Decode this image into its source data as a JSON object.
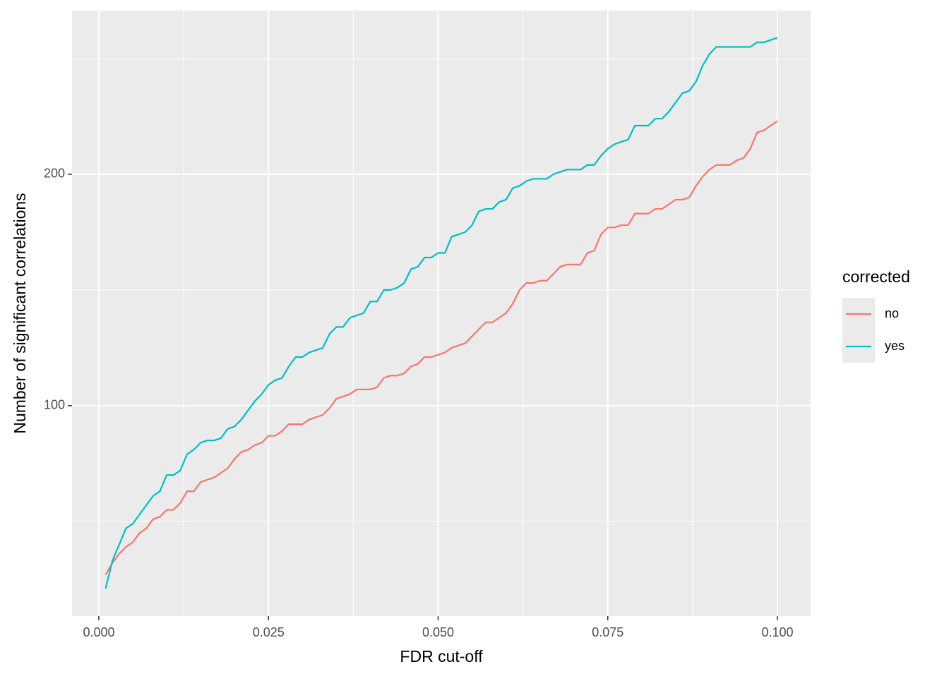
{
  "chart_data": {
    "type": "line",
    "x_label": "FDR cut-off",
    "y_label": "Number of significant correlations",
    "legend_title": "corrected",
    "legend_position": "right",
    "grid": true,
    "x": [
      0.001,
      0.002,
      0.003,
      0.004,
      0.005,
      0.006,
      0.007,
      0.008,
      0.009,
      0.01,
      0.011,
      0.012,
      0.013,
      0.014,
      0.015,
      0.016,
      0.017,
      0.018,
      0.019,
      0.02,
      0.021,
      0.022,
      0.023,
      0.024,
      0.025,
      0.026,
      0.027,
      0.028,
      0.029,
      0.03,
      0.031,
      0.032,
      0.033,
      0.034,
      0.035,
      0.036,
      0.037,
      0.038,
      0.039,
      0.04,
      0.041,
      0.042,
      0.043,
      0.044,
      0.045,
      0.046,
      0.047,
      0.048,
      0.049,
      0.05,
      0.051,
      0.052,
      0.053,
      0.054,
      0.055,
      0.056,
      0.057,
      0.058,
      0.059,
      0.06,
      0.061,
      0.062,
      0.063,
      0.064,
      0.065,
      0.066,
      0.067,
      0.068,
      0.069,
      0.07,
      0.071,
      0.072,
      0.073,
      0.074,
      0.075,
      0.076,
      0.077,
      0.078,
      0.079,
      0.08,
      0.081,
      0.082,
      0.083,
      0.084,
      0.085,
      0.086,
      0.087,
      0.088,
      0.089,
      0.09,
      0.091,
      0.092,
      0.093,
      0.094,
      0.095,
      0.096,
      0.097,
      0.098,
      0.099,
      0.1
    ],
    "series": [
      {
        "name": "no",
        "color": "#F8766D",
        "values": [
          27,
          32,
          36,
          39,
          41,
          45,
          47,
          51,
          52,
          55,
          55,
          58,
          63,
          63,
          67,
          68,
          69,
          71,
          73,
          77,
          80,
          81,
          83,
          84,
          87,
          87,
          89,
          92,
          92,
          92,
          94,
          95,
          96,
          99,
          103,
          104,
          105,
          107,
          107,
          107,
          108,
          112,
          113,
          113,
          114,
          117,
          118,
          121,
          121,
          122,
          123,
          125,
          126,
          127,
          130,
          133,
          136,
          136,
          138,
          140,
          144,
          150,
          153,
          153,
          154,
          154,
          157,
          160,
          161,
          161,
          161,
          166,
          167,
          174,
          177,
          177,
          178,
          178,
          183,
          183,
          183,
          185,
          185,
          187,
          189,
          189,
          190,
          195,
          199,
          202,
          204,
          204,
          204,
          206,
          207,
          211,
          218,
          219,
          221,
          223
        ]
      },
      {
        "name": "yes",
        "color": "#00BFC4",
        "values": [
          21,
          33,
          40,
          47,
          49,
          53,
          57,
          61,
          63,
          70,
          70,
          72,
          79,
          81,
          84,
          85,
          85,
          86,
          90,
          91,
          94,
          98,
          102,
          105,
          109,
          111,
          112,
          117,
          121,
          121,
          123,
          124,
          125,
          131,
          134,
          134,
          138,
          139,
          140,
          145,
          145,
          150,
          150,
          151,
          153,
          159,
          160,
          164,
          164,
          166,
          166,
          173,
          174,
          175,
          178,
          184,
          185,
          185,
          188,
          189,
          194,
          195,
          197,
          198,
          198,
          198,
          200,
          201,
          202,
          202,
          202,
          204,
          204,
          208,
          211,
          213,
          214,
          215,
          221,
          221,
          221,
          224,
          224,
          227,
          231,
          235,
          236,
          240,
          247,
          252,
          255,
          255,
          255,
          255,
          255,
          255,
          257,
          257,
          258,
          259
        ]
      }
    ],
    "xlim": [
      -0.00395,
      0.10489
    ],
    "ylim": [
      9.1,
      270.7
    ],
    "xticks": [
      {
        "value": 0,
        "label": "0.000"
      },
      {
        "value": 0.025,
        "label": "0.025"
      },
      {
        "value": 0.05,
        "label": "0.050"
      },
      {
        "value": 0.075,
        "label": "0.075"
      },
      {
        "value": 0.1,
        "label": "0.100"
      }
    ],
    "yticks": [
      100,
      200
    ],
    "xminor_ticks": [
      0.0125,
      0.0375,
      0.0625,
      0.0875
    ],
    "yminor_ticks": [
      50,
      150,
      250
    ]
  }
}
